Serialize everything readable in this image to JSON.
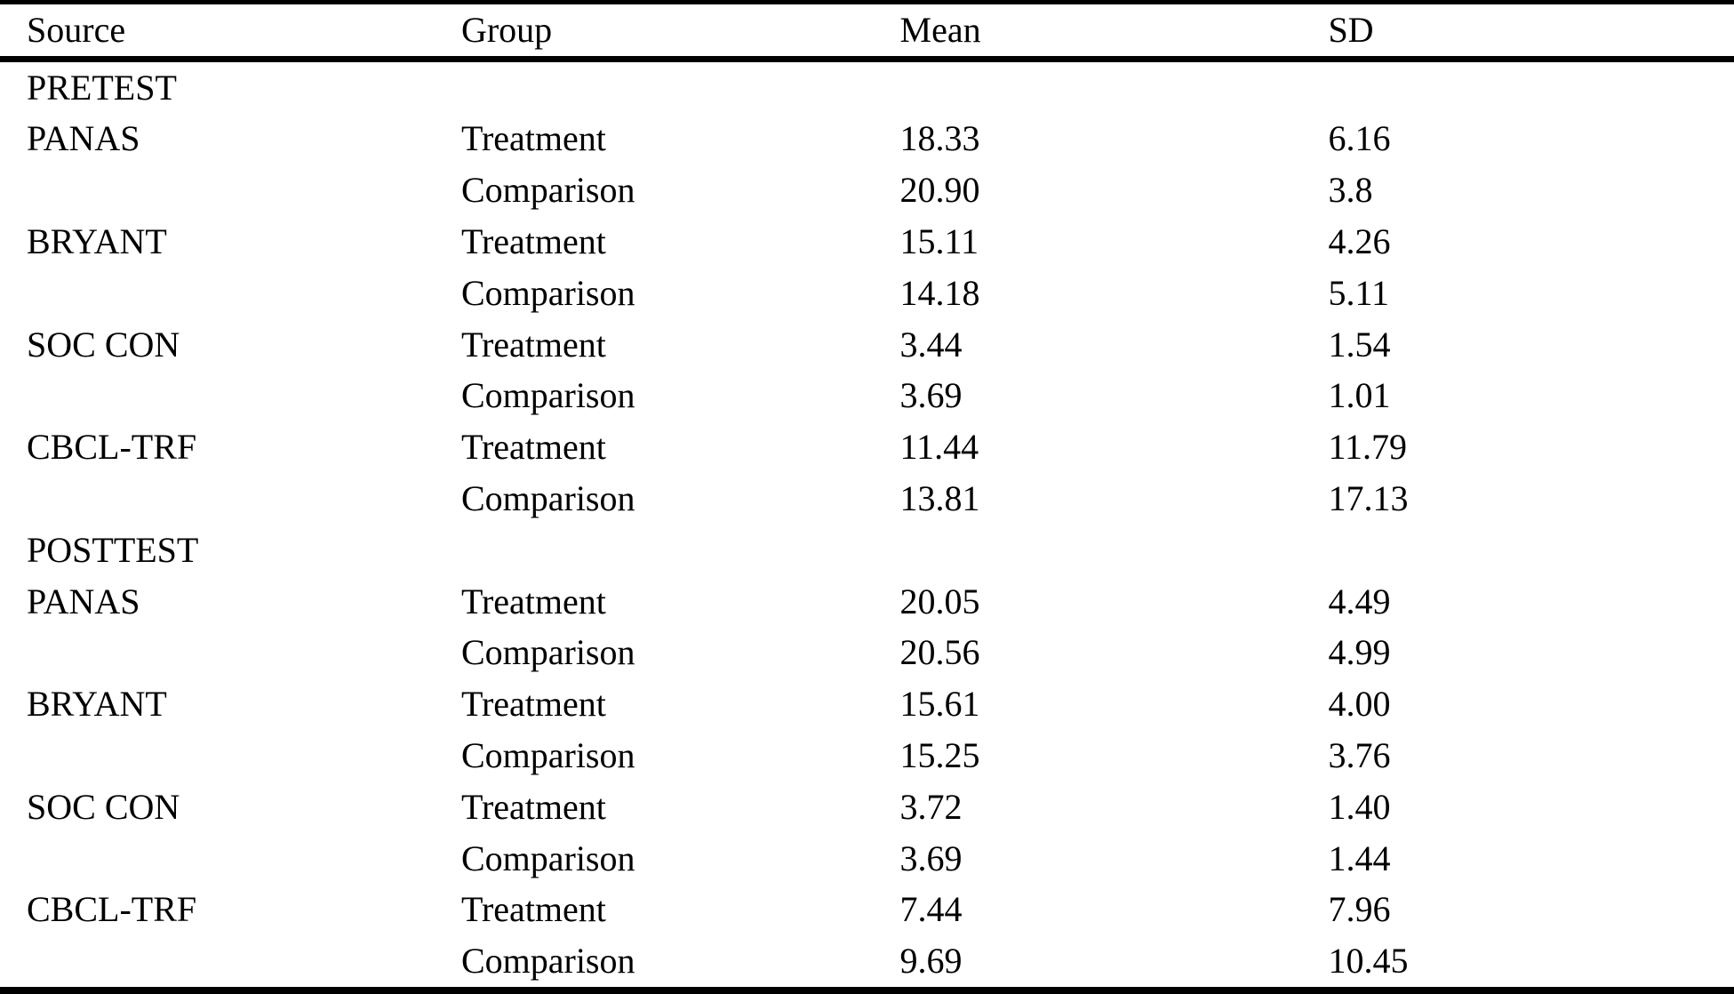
{
  "table": {
    "columns": [
      "Source",
      "Group",
      "Mean",
      "SD"
    ],
    "rows": [
      {
        "source": "PRETEST",
        "group": "",
        "mean": "",
        "sd": ""
      },
      {
        "source": "PANAS",
        "group": "Treatment",
        "mean": "18.33",
        "sd": "6.16"
      },
      {
        "source": "",
        "group": "Comparison",
        "mean": "20.90",
        "sd": "3.8"
      },
      {
        "source": "BRYANT",
        "group": "Treatment",
        "mean": "15.11",
        "sd": "4.26"
      },
      {
        "source": "",
        "group": "Comparison",
        "mean": "14.18",
        "sd": "5.11"
      },
      {
        "source": "SOC CON",
        "group": "Treatment",
        "mean": "3.44",
        "sd": "1.54"
      },
      {
        "source": "",
        "group": "Comparison",
        "mean": "3.69",
        "sd": "1.01"
      },
      {
        "source": "CBCL-TRF",
        "group": "Treatment",
        "mean": "11.44",
        "sd": "11.79"
      },
      {
        "source": "",
        "group": "Comparison",
        "mean": "13.81",
        "sd": "17.13"
      },
      {
        "source": "POSTTEST",
        "group": "",
        "mean": "",
        "sd": ""
      },
      {
        "source": "PANAS",
        "group": "Treatment",
        "mean": "20.05",
        "sd": "4.49"
      },
      {
        "source": "",
        "group": "Comparison",
        "mean": "20.56",
        "sd": "4.99"
      },
      {
        "source": "BRYANT",
        "group": "Treatment",
        "mean": "15.61",
        "sd": "4.00"
      },
      {
        "source": "",
        "group": "Comparison",
        "mean": "15.25",
        "sd": "3.76"
      },
      {
        "source": "SOC CON",
        "group": "Treatment",
        "mean": "3.72",
        "sd": "1.40"
      },
      {
        "source": "",
        "group": "Comparison",
        "mean": "3.69",
        "sd": "1.44"
      },
      {
        "source": "CBCL-TRF",
        "group": "Treatment",
        "mean": "7.44",
        "sd": "7.96"
      },
      {
        "source": "",
        "group": "Comparison",
        "mean": "9.69",
        "sd": "10.45"
      }
    ]
  },
  "colors": {
    "background": "#ffffff",
    "text": "#000000",
    "rule": "#000000"
  }
}
